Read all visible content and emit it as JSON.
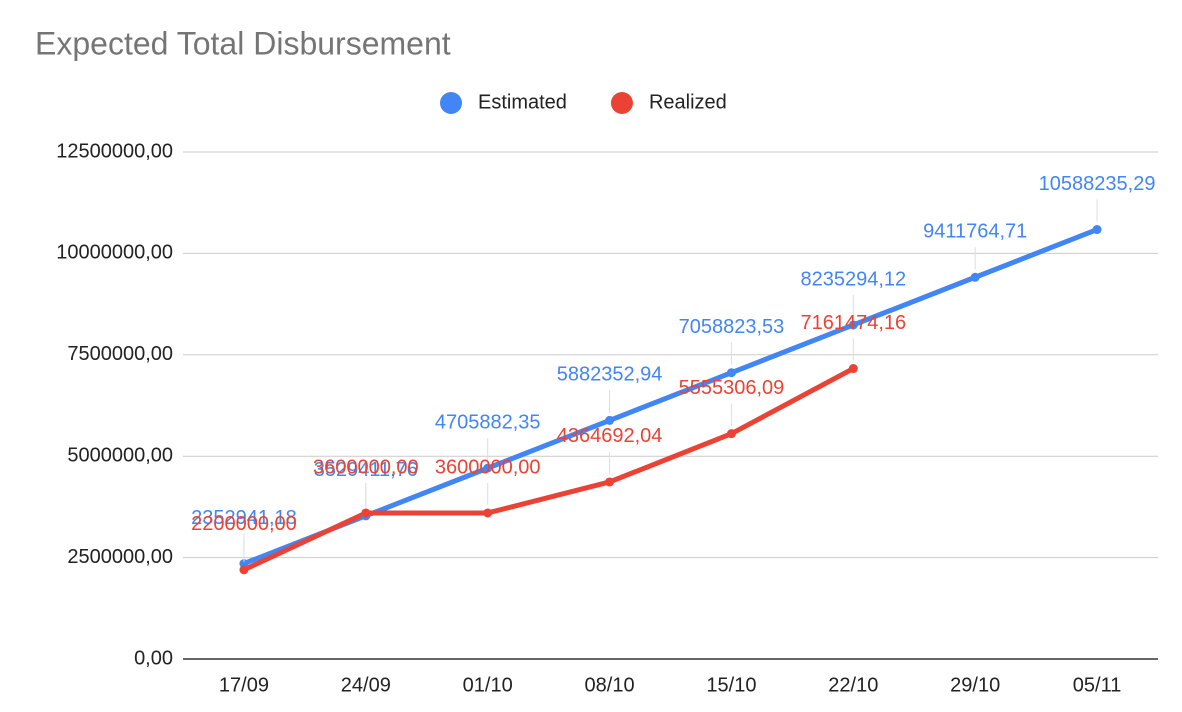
{
  "chart_data": {
    "type": "line",
    "title": "Expected Total Disbursement",
    "categories": [
      "17/09",
      "24/09",
      "01/10",
      "08/10",
      "15/10",
      "22/10",
      "29/10",
      "05/11"
    ],
    "series": [
      {
        "name": "Estimated",
        "color": "#4285f4",
        "values": [
          2352941.18,
          3529411.76,
          4705882.35,
          5882352.94,
          7058823.53,
          8235294.12,
          9411764.71,
          10588235.29
        ],
        "value_labels": [
          "2352941,18",
          "3529411,76",
          "4705882,35",
          "5882352,94",
          "7058823,53",
          "8235294,12",
          "9411764,71",
          "10588235,29"
        ]
      },
      {
        "name": "Realized",
        "color": "#ea4335",
        "values": [
          2200000,
          3600000,
          3600000,
          4364692.04,
          5555306.09,
          7161474.16,
          null,
          null
        ],
        "value_labels": [
          "2200000,00",
          "3600000,00",
          "3600000,00",
          "4364692,04",
          "5555306,09",
          "7161474,16",
          null,
          null
        ]
      }
    ],
    "ylim": [
      0,
      12500000
    ],
    "yticks": [
      {
        "value": 0,
        "label": "0,00"
      },
      {
        "value": 2500000,
        "label": "2500000,00"
      },
      {
        "value": 5000000,
        "label": "5000000,00"
      },
      {
        "value": 7500000,
        "label": "7500000,00"
      },
      {
        "value": 10000000,
        "label": "10000000,00"
      },
      {
        "value": 12500000,
        "label": "12500000,00"
      }
    ],
    "grid": true,
    "legend": "top"
  }
}
